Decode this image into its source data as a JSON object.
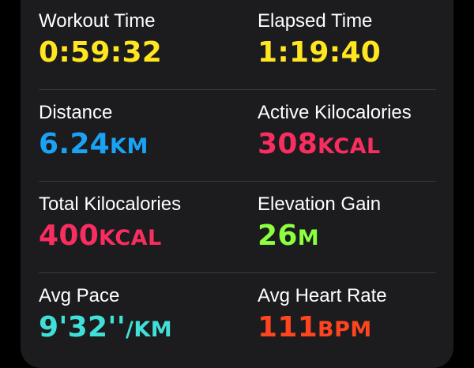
{
  "colors": {
    "background": "#000000",
    "card": "#1c1c1e",
    "label": "#ffffff",
    "divider": "#3a3a3c",
    "time": "#ffe620",
    "distance": "#1aa3f6",
    "calories": "#fa2d61",
    "elevation": "#8cff3f",
    "pace": "#40e0d8",
    "heart_rate": "#ff4420"
  },
  "metrics": {
    "workout_time": {
      "label": "Workout Time",
      "value": "0:59:32",
      "unit": ""
    },
    "elapsed_time": {
      "label": "Elapsed Time",
      "value": "1:19:40",
      "unit": ""
    },
    "distance": {
      "label": "Distance",
      "value": "6.24",
      "unit": "KM"
    },
    "active_kilocalories": {
      "label": "Active Kilocalories",
      "value": "308",
      "unit": "KCAL"
    },
    "total_kilocalories": {
      "label": "Total Kilocalories",
      "value": "400",
      "unit": "KCAL"
    },
    "elevation_gain": {
      "label": "Elevation Gain",
      "value": "26",
      "unit": "M"
    },
    "avg_pace": {
      "label": "Avg Pace",
      "value": "9'32''",
      "unit": "/KM"
    },
    "avg_heart_rate": {
      "label": "Avg Heart Rate",
      "value": "111",
      "unit": "BPM"
    }
  }
}
